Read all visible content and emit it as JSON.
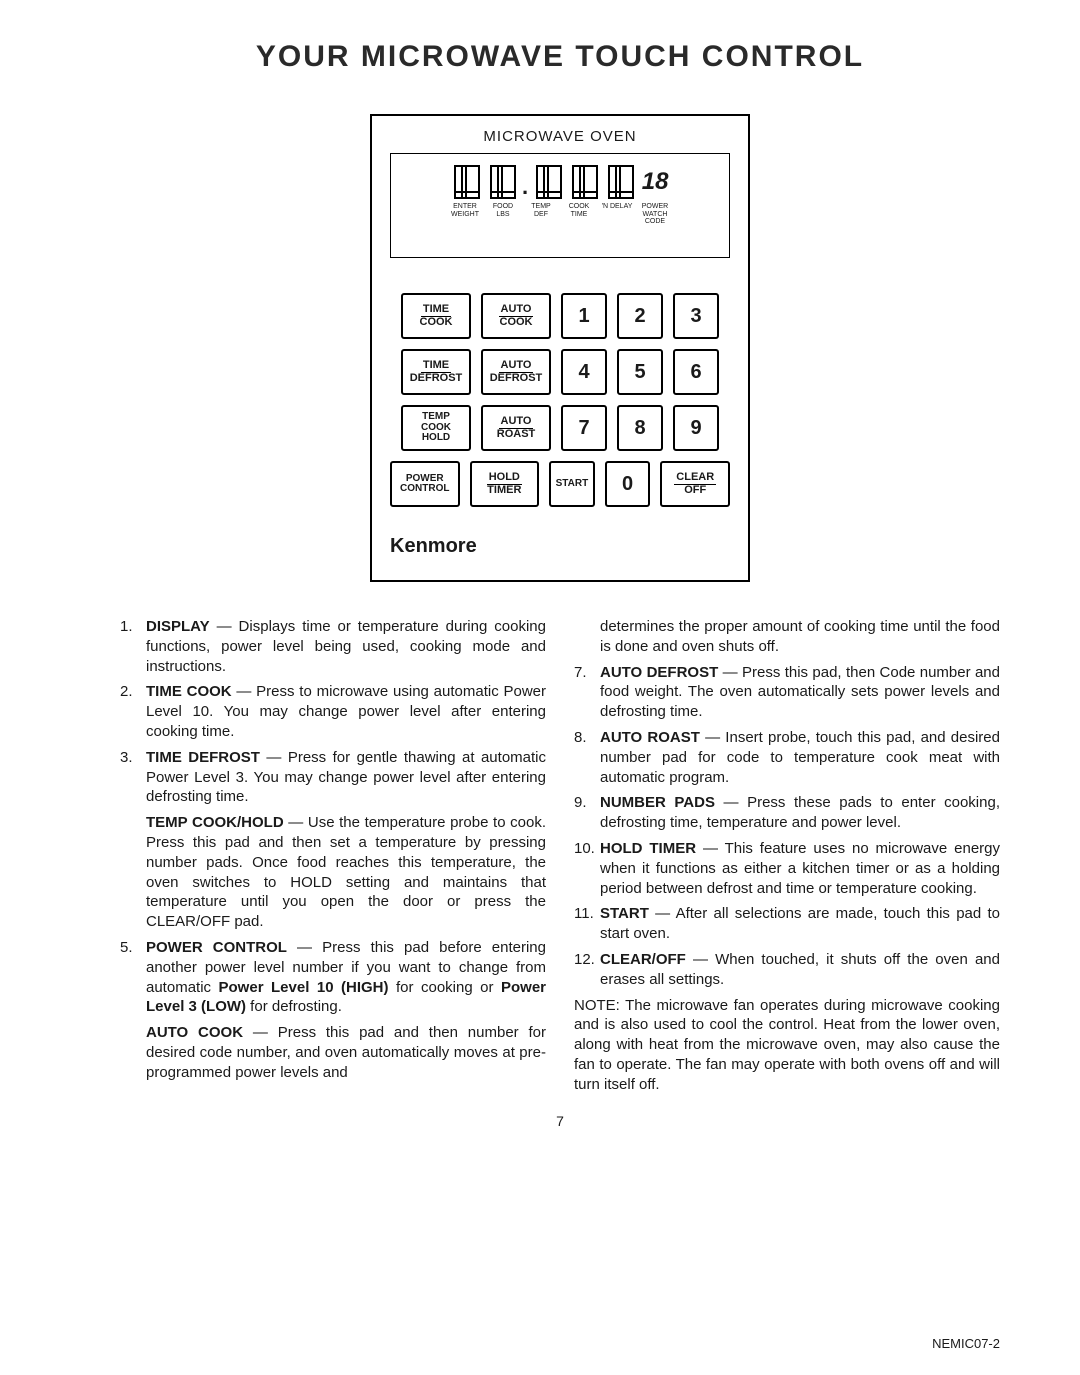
{
  "title": "YOUR MICROWAVE TOUCH CONTROL",
  "panel": {
    "header": "MICROWAVE OVEN",
    "last_digit": "18",
    "digit_labels": [
      "ENTER WEIGHT",
      "FOOD LBS",
      "TEMP DEF",
      "COOK TIME",
      "'N DELAY",
      "POWER WATCH CODE"
    ],
    "rows": [
      [
        {
          "label": "TIME COOK",
          "type": "frac"
        },
        {
          "label": "AUTO COOK",
          "type": "frac"
        },
        {
          "label": "1",
          "type": "num"
        },
        {
          "label": "2",
          "type": "num"
        },
        {
          "label": "3",
          "type": "num"
        }
      ],
      [
        {
          "label": "TIME DEFROST",
          "type": "frac"
        },
        {
          "label": "AUTO DEFROST",
          "type": "frac"
        },
        {
          "label": "4",
          "type": "num"
        },
        {
          "label": "5",
          "type": "num"
        },
        {
          "label": "6",
          "type": "num"
        }
      ],
      [
        {
          "label": "TEMP COOK HOLD",
          "type": "stack"
        },
        {
          "label": "AUTO ROAST",
          "type": "frac"
        },
        {
          "label": "7",
          "type": "num"
        },
        {
          "label": "8",
          "type": "num"
        },
        {
          "label": "9",
          "type": "num"
        }
      ],
      [
        {
          "label": "POWER CONTROL",
          "type": "stack"
        },
        {
          "label": "HOLD TIMER",
          "type": "frac"
        },
        {
          "label": "START",
          "type": "small"
        },
        {
          "label": "0",
          "type": "num"
        },
        {
          "label": "CLEAR OFF",
          "type": "frac"
        }
      ]
    ],
    "brand": "Kenmore"
  },
  "left_items": [
    {
      "n": "1.",
      "label": "DISPLAY",
      "body": " — Displays time or temperature during cooking functions, power level being used, cooking mode and instructions."
    },
    {
      "n": "2.",
      "label": "TIME COOK",
      "body": " — Press to microwave using automatic Power Level 10. You may change power level after entering cooking time."
    },
    {
      "n": "3.",
      "label": "TIME DEFROST",
      "body": " — Press for gentle thawing at automatic Power Level 3. You may change power level after entering defrosting time."
    },
    {
      "n": "",
      "label": "TEMP COOK/HOLD",
      "body": " — Use the temperature probe to cook. Press this pad and then set a temperature by pressing number pads. Once food reaches this temperature, the oven switches to HOLD setting and maintains that temperature until you open the door or press the CLEAR/OFF pad."
    },
    {
      "n": "5.",
      "label": "POWER CONTROL",
      "body": " — Press this pad before entering another power level number if you want to change from automatic ",
      "bold2": "Power Level 10 (HIGH)",
      "body2": " for cooking or ",
      "bold3": "Power Level 3 (LOW)",
      "body3": " for defrosting."
    },
    {
      "n": "",
      "label": "AUTO COOK",
      "body": " — Press this pad and then number for desired code number, and oven automatically moves at pre-programmed power levels and"
    }
  ],
  "right_items": [
    {
      "n": "",
      "label": "",
      "body": "determines the proper amount of cooking time until the food is done and oven shuts off."
    },
    {
      "n": "7.",
      "label": "AUTO DEFROST",
      "body": " — Press this pad, then Code number and food weight. The oven automatically sets power levels and defrosting time."
    },
    {
      "n": "8.",
      "label": "AUTO ROAST",
      "body": " — Insert probe, touch this pad, and desired number pad for code to temperature cook meat with automatic program."
    },
    {
      "n": "9.",
      "label": "NUMBER PADS",
      "body": " — Press these pads to enter cooking, defrosting time, temperature and power level."
    },
    {
      "n": "10.",
      "label": "HOLD TIMER",
      "body": " — This feature uses no microwave energy when it functions as either a kitchen timer or as a holding period between defrost and time or temperature cooking."
    },
    {
      "n": "11.",
      "label": "START",
      "body": " — After all selections are made, touch this pad to start oven."
    },
    {
      "n": "12.",
      "label": "CLEAR/OFF",
      "body": " — When touched, it shuts off the oven and erases all settings."
    }
  ],
  "note": "NOTE: The microwave fan operates during microwave cooking and is also used to cool the control. Heat from the lower oven, along with heat from the microwave oven, may also cause the fan to operate. The fan may operate with both ovens off and will turn itself off.",
  "page_number": "7",
  "doc_id": "NEMIC07-2"
}
